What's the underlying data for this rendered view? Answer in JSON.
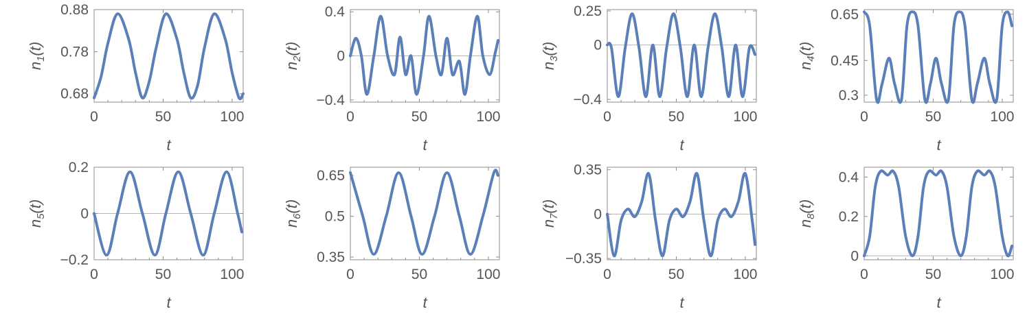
{
  "chart_data": [
    {
      "type": "line",
      "ylabel": "n1(t)",
      "ylabel_main": "n",
      "ylabel_sub": "1",
      "ylabel_tail": "(t)",
      "xlabel": "t",
      "xlim": [
        0,
        108
      ],
      "ylim": [
        0.66,
        0.88
      ],
      "xticks": [
        0,
        50,
        100
      ],
      "yticks": [
        0.68,
        0.78,
        0.88
      ],
      "ytick_labels": [
        "0.68",
        "0.78",
        "0.88"
      ],
      "series": [
        {
          "t": [
            0,
            5,
            10,
            17,
            25,
            30,
            35,
            40,
            45,
            52,
            60,
            65,
            70,
            75,
            80,
            87,
            95,
            100,
            105,
            108
          ],
          "y": [
            0.67,
            0.72,
            0.8,
            0.87,
            0.81,
            0.73,
            0.67,
            0.71,
            0.79,
            0.87,
            0.81,
            0.73,
            0.67,
            0.7,
            0.79,
            0.87,
            0.81,
            0.73,
            0.67,
            0.68
          ]
        }
      ]
    },
    {
      "type": "line",
      "ylabel": "n2(t)",
      "ylabel_main": "n",
      "ylabel_sub": "2",
      "ylabel_tail": "(t)",
      "xlabel": "t",
      "xlim": [
        0,
        108
      ],
      "ylim": [
        -0.42,
        0.42
      ],
      "xticks": [
        0,
        50,
        100
      ],
      "yticks": [
        -0.4,
        0,
        0.4
      ],
      "ytick_labels": [
        "−0.4",
        "0",
        "0.4"
      ],
      "series": [
        {
          "t": [
            0,
            4,
            8,
            12,
            17,
            22,
            27,
            32,
            36,
            40,
            44,
            48,
            53,
            57,
            62,
            66,
            70,
            74,
            79,
            83,
            87,
            92,
            96,
            101,
            105,
            107
          ],
          "y": [
            0,
            0.16,
            0,
            -0.35,
            0,
            0.36,
            0,
            -0.17,
            0.17,
            -0.17,
            0,
            -0.35,
            0,
            0.36,
            0,
            -0.17,
            0.16,
            -0.17,
            -0.05,
            -0.35,
            0,
            0.36,
            0,
            -0.17,
            0.03,
            0.14
          ]
        }
      ]
    },
    {
      "type": "line",
      "ylabel": "n3(t)",
      "ylabel_main": "n",
      "ylabel_sub": "3",
      "ylabel_tail": "(t)",
      "xlabel": "t",
      "xlim": [
        0,
        108
      ],
      "ylim": [
        -0.42,
        0.26
      ],
      "xticks": [
        0,
        50,
        100
      ],
      "yticks": [
        -0.4,
        0,
        0.25
      ],
      "ytick_labels": [
        "−0.4",
        "0",
        "0.25"
      ],
      "series": [
        {
          "t": [
            0,
            3,
            8,
            13,
            18,
            23,
            28,
            33,
            38,
            43,
            48,
            53,
            58,
            63,
            68,
            73,
            78,
            83,
            88,
            93,
            98,
            103,
            107
          ],
          "y": [
            0,
            -0.02,
            -0.38,
            -0.02,
            0.23,
            -0.02,
            -0.38,
            0,
            -0.38,
            -0.02,
            0.23,
            -0.02,
            -0.38,
            0,
            -0.38,
            -0.02,
            0.23,
            -0.02,
            -0.38,
            0,
            -0.38,
            -0.02,
            -0.07
          ]
        }
      ]
    },
    {
      "type": "line",
      "ylabel": "n4(t)",
      "ylabel_main": "n",
      "ylabel_sub": "4",
      "ylabel_tail": "(t)",
      "xlabel": "t",
      "xlim": [
        0,
        108
      ],
      "ylim": [
        0.27,
        0.67
      ],
      "xticks": [
        0,
        50,
        100
      ],
      "yticks": [
        0.3,
        0.45,
        0.65
      ],
      "ytick_labels": [
        "0.3",
        "0.45",
        "0.65"
      ],
      "series": [
        {
          "t": [
            0,
            4,
            9,
            13,
            18,
            22,
            27,
            31,
            35,
            39,
            44,
            48,
            52,
            56,
            61,
            65,
            69,
            73,
            78,
            82,
            87,
            91,
            96,
            100,
            104,
            107
          ],
          "y": [
            0.66,
            0.6,
            0.28,
            0.35,
            0.46,
            0.35,
            0.28,
            0.6,
            0.66,
            0.6,
            0.28,
            0.35,
            0.46,
            0.35,
            0.28,
            0.6,
            0.66,
            0.6,
            0.28,
            0.35,
            0.46,
            0.35,
            0.28,
            0.6,
            0.66,
            0.6
          ]
        }
      ]
    },
    {
      "type": "line",
      "ylabel": "n5(t)",
      "ylabel_main": "n",
      "ylabel_sub": "5",
      "ylabel_tail": "(t)",
      "xlabel": "t",
      "xlim": [
        0,
        108
      ],
      "ylim": [
        -0.2,
        0.2
      ],
      "xticks": [
        0,
        50,
        100
      ],
      "yticks": [
        -0.2,
        0,
        0.2
      ],
      "ytick_labels": [
        "−0.2",
        "0",
        "0.2"
      ],
      "series": [
        {
          "t": [
            0,
            9,
            17,
            26,
            35,
            44,
            52,
            61,
            70,
            79,
            87,
            96,
            104,
            107
          ],
          "y": [
            0,
            -0.18,
            0,
            0.18,
            0,
            -0.18,
            0,
            0.18,
            0,
            -0.18,
            0,
            0.18,
            0,
            -0.08
          ]
        }
      ]
    },
    {
      "type": "line",
      "ylabel": "n6(t)",
      "ylabel_main": "n",
      "ylabel_sub": "6",
      "ylabel_tail": "(t)",
      "xlabel": "t",
      "xlim": [
        0,
        108
      ],
      "ylim": [
        0.34,
        0.68
      ],
      "xticks": [
        0,
        50,
        100
      ],
      "yticks": [
        0.35,
        0.5,
        0.65
      ],
      "ytick_labels": [
        "0.35",
        "0.5",
        "0.65"
      ],
      "series": [
        {
          "t": [
            0,
            9,
            17,
            26,
            35,
            44,
            52,
            61,
            70,
            79,
            87,
            96,
            104,
            107
          ],
          "y": [
            0.66,
            0.5,
            0.36,
            0.5,
            0.66,
            0.5,
            0.36,
            0.5,
            0.66,
            0.5,
            0.36,
            0.5,
            0.66,
            0.65
          ]
        }
      ]
    },
    {
      "type": "line",
      "ylabel": "n7(t)",
      "ylabel_main": "n",
      "ylabel_sub": "7",
      "ylabel_tail": "(t)",
      "xlabel": "t",
      "xlim": [
        0,
        108
      ],
      "ylim": [
        -0.36,
        0.37
      ],
      "xticks": [
        0,
        50,
        100
      ],
      "yticks": [
        -0.35,
        0,
        0.35
      ],
      "ytick_labels": [
        "−0.35",
        "0",
        "0.35"
      ],
      "series": [
        {
          "t": [
            0,
            5,
            10,
            15,
            20,
            25,
            30,
            35,
            40,
            45,
            50,
            55,
            60,
            65,
            70,
            75,
            80,
            85,
            90,
            95,
            100,
            105,
            107
          ],
          "y": [
            0,
            -0.33,
            -0.05,
            0.04,
            -0.02,
            0.1,
            0.32,
            -0.05,
            -0.33,
            -0.05,
            0.04,
            -0.02,
            0.1,
            0.32,
            -0.05,
            -0.33,
            -0.05,
            0.04,
            -0.02,
            0.1,
            0.32,
            -0.05,
            -0.24
          ]
        }
      ]
    },
    {
      "type": "line",
      "ylabel": "n8(t)",
      "ylabel_main": "n",
      "ylabel_sub": "8",
      "ylabel_tail": "(t)",
      "xlabel": "t",
      "xlim": [
        0,
        108
      ],
      "ylim": [
        -0.02,
        0.45
      ],
      "xticks": [
        0,
        50,
        100
      ],
      "yticks": [
        0,
        0.2,
        0.4
      ],
      "ytick_labels": [
        "0",
        "0.2",
        "0.4"
      ],
      "series": [
        {
          "t": [
            0,
            4,
            8,
            12,
            17,
            21,
            25,
            30,
            35,
            39,
            43,
            47,
            52,
            56,
            60,
            65,
            70,
            74,
            78,
            82,
            87,
            91,
            95,
            100,
            104,
            107
          ],
          "y": [
            0,
            0.1,
            0.35,
            0.43,
            0.41,
            0.43,
            0.35,
            0.1,
            0,
            0.1,
            0.35,
            0.43,
            0.41,
            0.43,
            0.35,
            0.1,
            0,
            0.1,
            0.35,
            0.43,
            0.41,
            0.43,
            0.35,
            0.1,
            0,
            0.05
          ]
        }
      ]
    }
  ]
}
